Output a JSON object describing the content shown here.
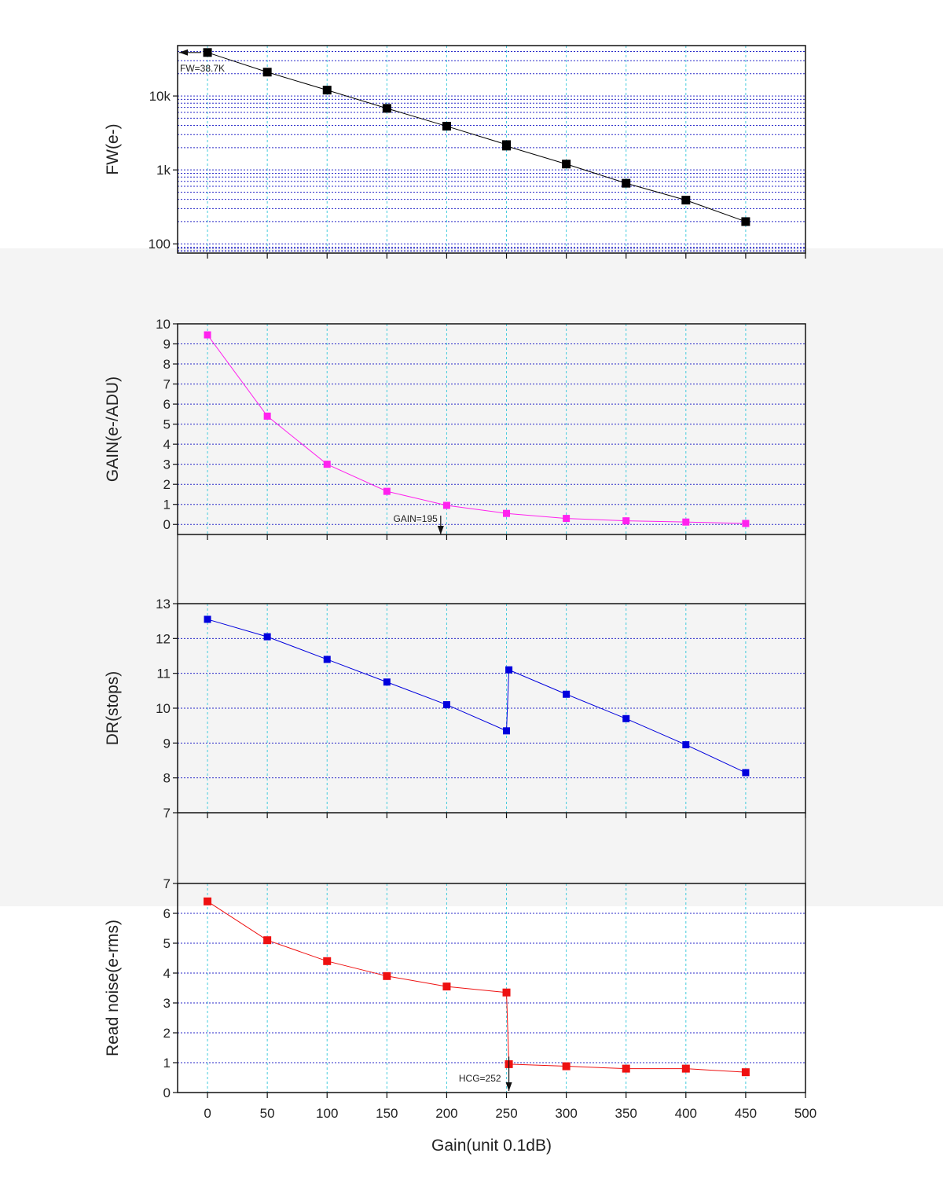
{
  "chart_data": [
    {
      "id": "fw",
      "type": "scatter-line",
      "scale": "log",
      "ylabel": "FW(e-)",
      "ylim": [
        75,
        48000
      ],
      "yticks": [
        {
          "v": 100,
          "label": "100"
        },
        {
          "v": 1000,
          "label": "1k"
        },
        {
          "v": 10000,
          "label": "10k"
        }
      ],
      "color": "#000000",
      "x": [
        0,
        50,
        100,
        150,
        200,
        250,
        250,
        300,
        350,
        400,
        450
      ],
      "y": [
        38700,
        21000,
        12000,
        6800,
        3900,
        2200,
        2100,
        1200,
        660,
        390,
        200
      ],
      "annotation": {
        "text": "FW=38.7K",
        "x": 0,
        "y": 38700
      }
    },
    {
      "id": "gain",
      "type": "scatter-line",
      "scale": "linear",
      "ylabel": "GAIN(e-/ADU)",
      "ylim": [
        -0.5,
        10
      ],
      "yticks": [
        {
          "v": 0,
          "label": "0"
        },
        {
          "v": 1,
          "label": "1"
        },
        {
          "v": 2,
          "label": "2"
        },
        {
          "v": 3,
          "label": "3"
        },
        {
          "v": 4,
          "label": "4"
        },
        {
          "v": 5,
          "label": "5"
        },
        {
          "v": 6,
          "label": "6"
        },
        {
          "v": 7,
          "label": "7"
        },
        {
          "v": 8,
          "label": "8"
        },
        {
          "v": 9,
          "label": "9"
        },
        {
          "v": 10,
          "label": "10"
        }
      ],
      "color": "#ff22ee",
      "x": [
        0,
        50,
        100,
        150,
        200,
        250,
        300,
        350,
        400,
        450
      ],
      "y": [
        9.45,
        5.4,
        3.0,
        1.65,
        0.95,
        0.55,
        0.3,
        0.18,
        0.12,
        0.05
      ],
      "annotation": {
        "text": "GAIN=195",
        "x": 195
      }
    },
    {
      "id": "dr",
      "type": "scatter-line",
      "scale": "linear",
      "ylabel": "DR(stops)",
      "ylim": [
        7,
        13
      ],
      "yticks": [
        {
          "v": 7,
          "label": "7"
        },
        {
          "v": 8,
          "label": "8"
        },
        {
          "v": 9,
          "label": "9"
        },
        {
          "v": 10,
          "label": "10"
        },
        {
          "v": 11,
          "label": "11"
        },
        {
          "v": 12,
          "label": "12"
        },
        {
          "v": 13,
          "label": "13"
        }
      ],
      "color": "#0000dd",
      "x": [
        0,
        50,
        100,
        150,
        200,
        250,
        252,
        300,
        350,
        400,
        450
      ],
      "y": [
        12.55,
        12.05,
        11.4,
        10.75,
        10.1,
        9.35,
        11.1,
        10.4,
        9.7,
        8.95,
        8.15
      ]
    },
    {
      "id": "rn",
      "type": "scatter-line",
      "scale": "linear",
      "ylabel": "Read noise(e-rms)",
      "ylim": [
        0,
        7
      ],
      "yticks": [
        {
          "v": 0,
          "label": "0"
        },
        {
          "v": 1,
          "label": "1"
        },
        {
          "v": 2,
          "label": "2"
        },
        {
          "v": 3,
          "label": "3"
        },
        {
          "v": 4,
          "label": "4"
        },
        {
          "v": 5,
          "label": "5"
        },
        {
          "v": 6,
          "label": "6"
        },
        {
          "v": 7,
          "label": "7"
        }
      ],
      "color": "#ee1111",
      "x": [
        0,
        50,
        100,
        150,
        200,
        250,
        252,
        300,
        350,
        400,
        450
      ],
      "y": [
        6.4,
        5.1,
        4.4,
        3.9,
        3.55,
        3.35,
        0.95,
        0.88,
        0.8,
        0.8,
        0.68
      ],
      "annotation": {
        "text": "HCG=252",
        "x": 252
      }
    }
  ],
  "x_axis": {
    "label": "Gain(unit 0.1dB)",
    "xlim": [
      -25,
      500
    ],
    "ticks": [
      "0",
      "50",
      "100",
      "150",
      "200",
      "250",
      "300",
      "350",
      "400",
      "450",
      "500"
    ]
  }
}
